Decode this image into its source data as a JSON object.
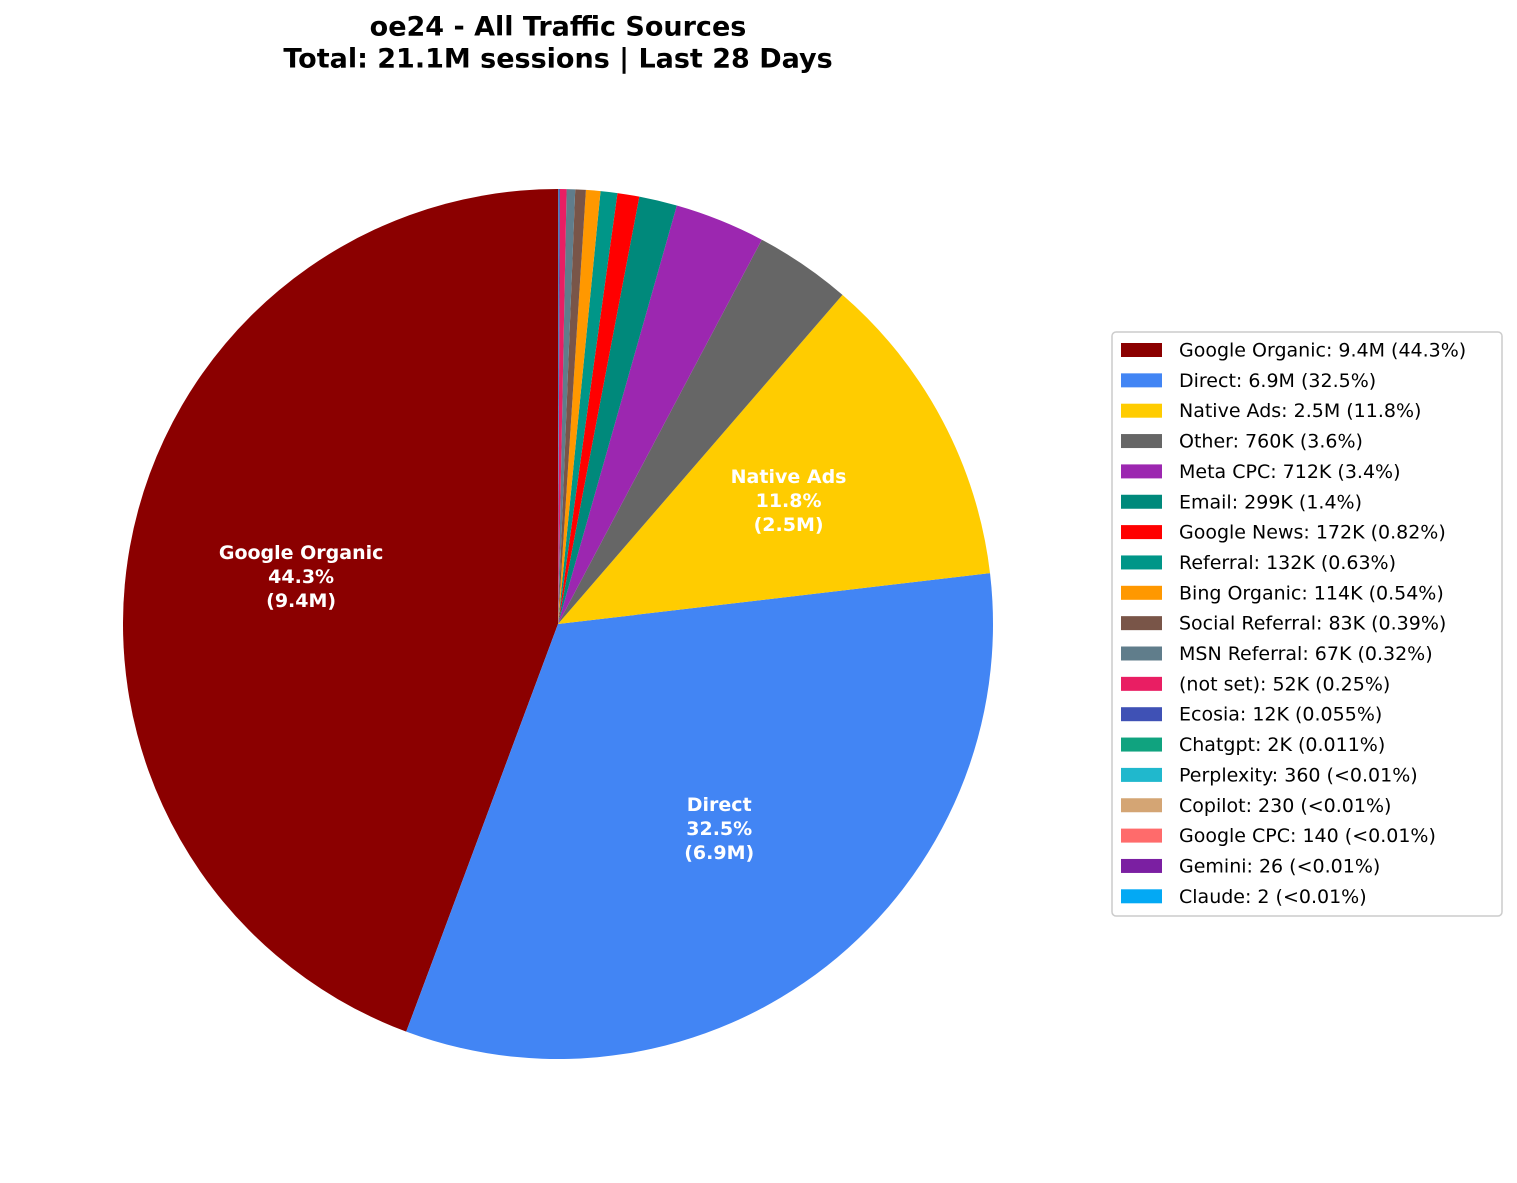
{
  "chart_data": {
    "type": "pie",
    "title": "oe24 - All Traffic Sources",
    "subtitle": "Total: 21.1M sessions | Last 28 Days",
    "categories": [
      "Google Organic",
      "Direct",
      "Native Ads",
      "Other",
      "Meta CPC",
      "Email",
      "Google News",
      "Referral",
      "Bing Organic",
      "Social Referral",
      "MSN Referral",
      "(not set)",
      "Ecosia",
      "Chatgpt",
      "Perplexity",
      "Copilot",
      "Google CPC",
      "Gemini",
      "Claude"
    ],
    "values": [
      9400000,
      6900000,
      2500000,
      760000,
      712000,
      299000,
      172000,
      132000,
      114000,
      83000,
      67000,
      52000,
      12000,
      2000,
      360,
      230,
      140,
      26,
      2
    ],
    "colors": [
      "#8b0000",
      "#4285f4",
      "#ffcc00",
      "#666666",
      "#9c27b0",
      "#00897b",
      "#ff0000",
      "#009688",
      "#ff9800",
      "#795548",
      "#607d8b",
      "#e91e63",
      "#3f51b5",
      "#10a37f",
      "#20b8cd",
      "#d4a574",
      "#ff6b6b",
      "#7b1fa2",
      "#03a9f4"
    ],
    "legend_labels": [
      "Google Organic: 9.4M (44.3%)",
      "Direct: 6.9M (32.5%)",
      "Native Ads: 2.5M (11.8%)",
      "Other: 760K (3.6%)",
      "Meta CPC: 712K (3.4%)",
      "Email: 299K (1.4%)",
      "Google News: 172K (0.82%)",
      "Referral: 132K (0.63%)",
      "Bing Organic: 114K (0.54%)",
      "Social Referral: 83K (0.39%)",
      "MSN Referral: 67K (0.32%)",
      "(not set): 52K (0.25%)",
      "Ecosia: 12K (0.055%)",
      "Chatgpt: 2K (0.011%)",
      "Perplexity: 360 (<0.01%)",
      "Copilot: 230 (<0.01%)",
      "Google CPC: 140 (<0.01%)",
      "Gemini: 26 (<0.01%)",
      "Claude: 2 (<0.01%)"
    ],
    "wedge_labels": [
      [
        "Google Organic",
        "44.3%",
        "(9.4M)"
      ],
      [
        "Direct",
        "32.5%",
        "(6.9M)"
      ],
      [
        "Native Ads",
        "11.8%",
        "(2.5M)"
      ],
      null,
      null,
      null,
      null,
      null,
      null,
      null,
      null,
      null,
      null,
      null,
      null,
      null,
      null,
      null,
      null
    ],
    "legend_position": "right"
  }
}
